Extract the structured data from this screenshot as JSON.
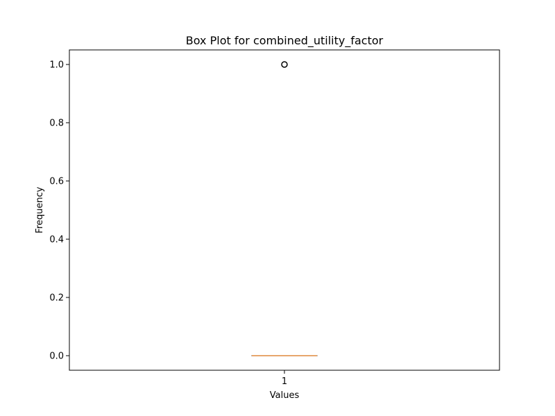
{
  "chart_data": {
    "type": "box",
    "title": "Box Plot for combined_utility_factor",
    "xlabel": "Values",
    "ylabel": "Frequency",
    "ylim": [
      -0.05,
      1.05
    ],
    "yticks": [
      0.0,
      0.2,
      0.4,
      0.6,
      0.8,
      1.0
    ],
    "ytick_labels": [
      "0.0",
      "0.2",
      "0.4",
      "0.6",
      "0.8",
      "1.0"
    ],
    "categories": [
      "1"
    ],
    "boxes": [
      {
        "category": "1",
        "min": 0.0,
        "q1": 0.0,
        "median": 0.0,
        "q3": 0.0,
        "max": 0.0,
        "outliers": [
          1.0
        ]
      }
    ],
    "colors": {
      "median": "#e08a3c",
      "box": "#000000",
      "outlier": "#000000"
    },
    "grid": false
  }
}
